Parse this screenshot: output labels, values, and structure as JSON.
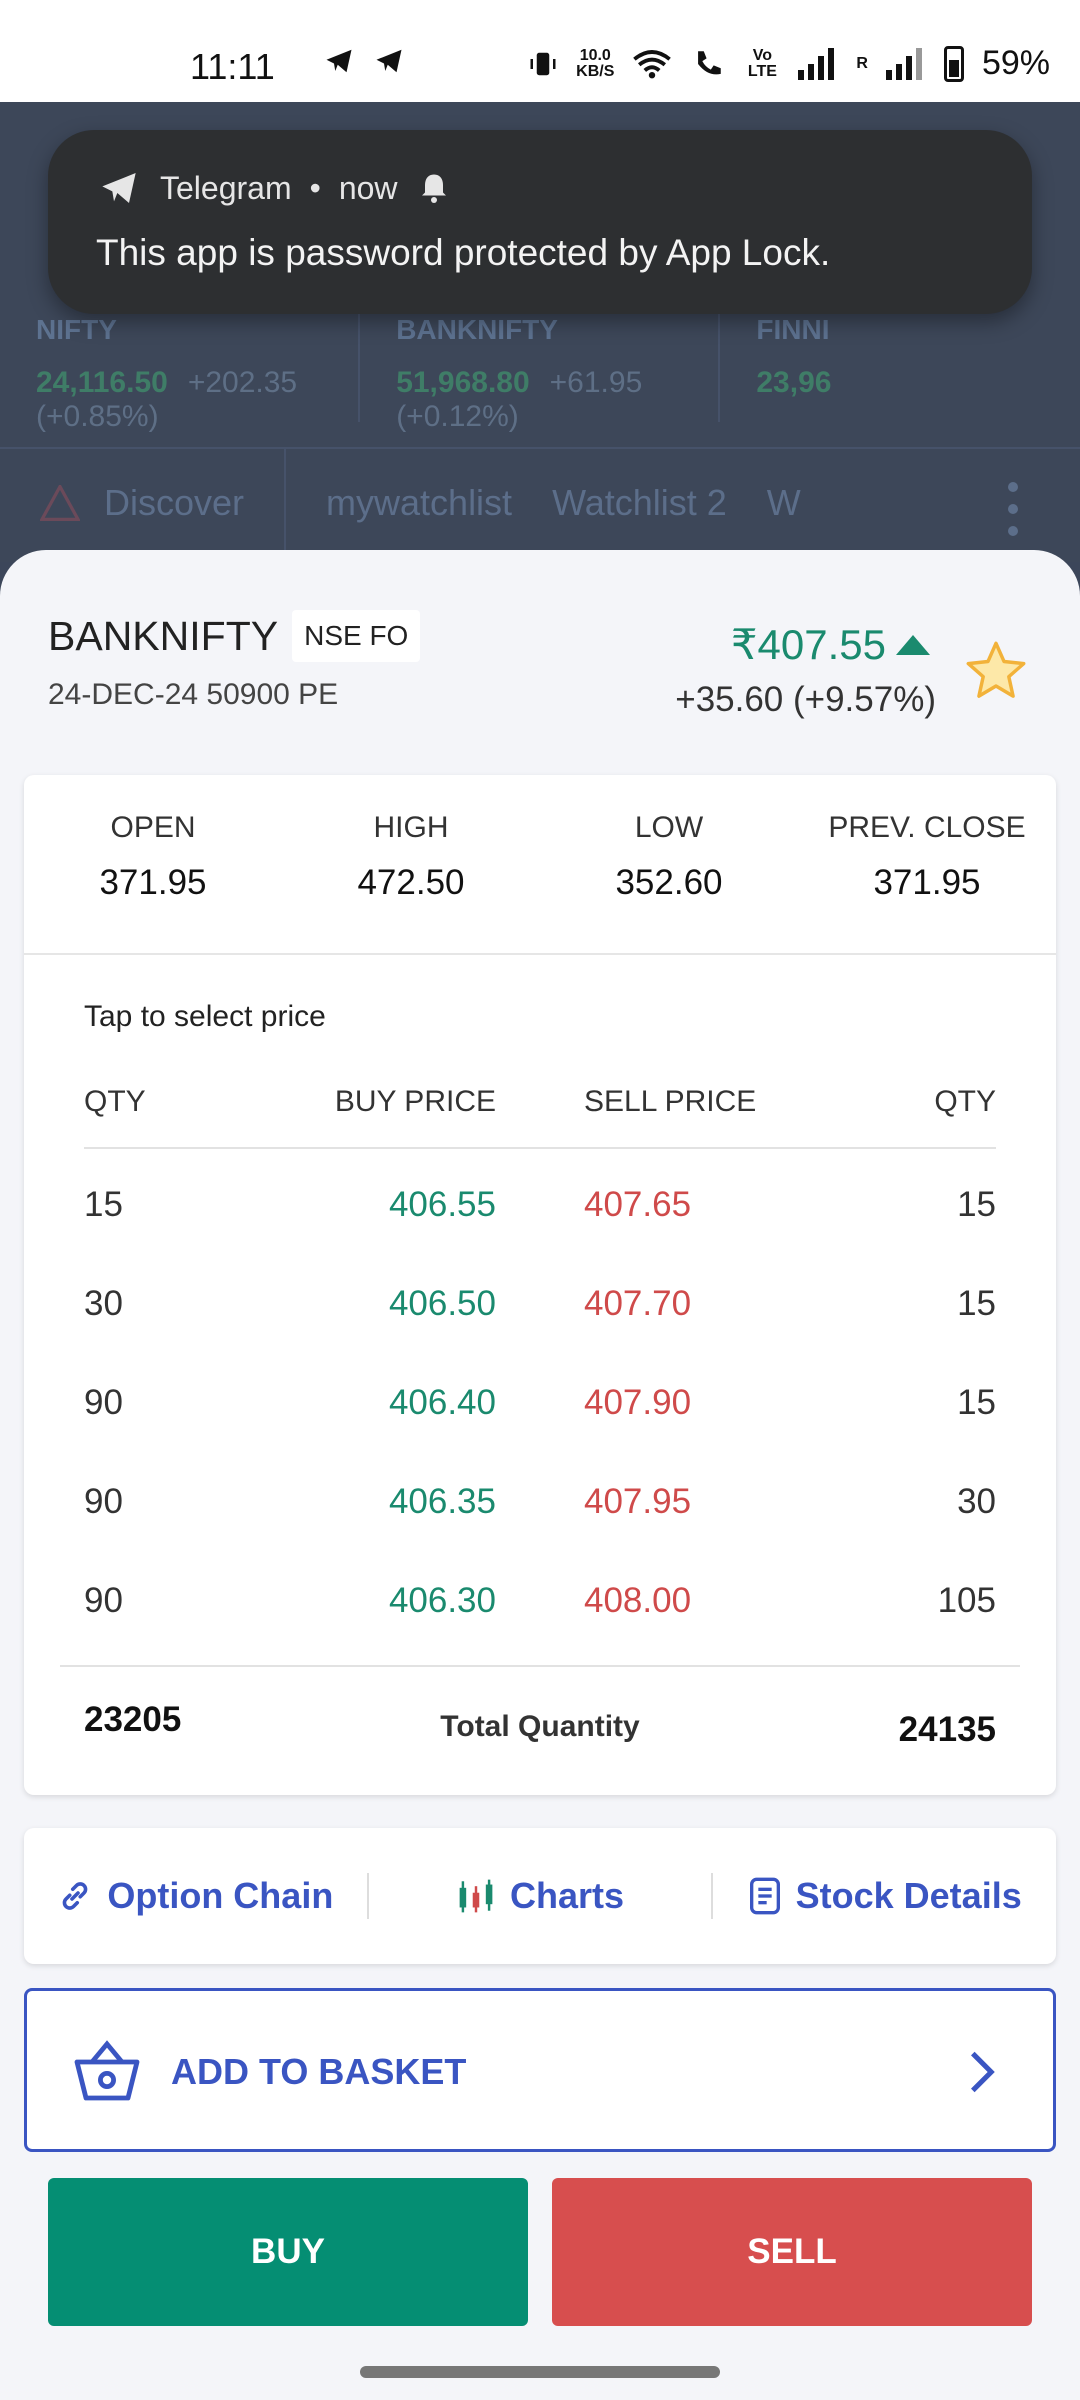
{
  "status_bar": {
    "time": "11:11",
    "net_speed_value": "10.0",
    "net_speed_unit": "KB/S",
    "volte": "Vo LTE",
    "roaming": "R",
    "battery": "59%"
  },
  "background_app": {
    "indices": [
      {
        "name": "NIFTY",
        "value": "24,116.50",
        "change": "+202.35 (+0.85%)"
      },
      {
        "name": "BANKNIFTY",
        "value": "51,968.80",
        "change": "+61.95 (+0.12%)"
      },
      {
        "name": "FINNI",
        "value": "23,96",
        "change": ""
      }
    ],
    "tabs": [
      "Discover",
      "mywatchlist",
      "Watchlist 2",
      "W"
    ]
  },
  "notification": {
    "app": "Telegram",
    "time": "now",
    "message": "This app is password protected by App Lock."
  },
  "instrument": {
    "symbol": "BANKNIFTY",
    "exchange": "NSE FO",
    "contract": "24-DEC-24 50900 PE",
    "ltp": "₹407.55",
    "change": "+35.60 (+9.57%)"
  },
  "ohlc": [
    {
      "label": "OPEN",
      "value": "371.95"
    },
    {
      "label": "HIGH",
      "value": "472.50"
    },
    {
      "label": "LOW",
      "value": "352.60"
    },
    {
      "label": "PREV. CLOSE",
      "value": "371.95"
    }
  ],
  "depth": {
    "hint": "Tap to select price",
    "headers": [
      "QTY",
      "BUY PRICE",
      "SELL PRICE",
      "QTY"
    ],
    "rows": [
      [
        "15",
        "406.55",
        "407.65",
        "15"
      ],
      [
        "30",
        "406.50",
        "407.70",
        "15"
      ],
      [
        "90",
        "406.40",
        "407.90",
        "15"
      ],
      [
        "90",
        "406.35",
        "407.95",
        "30"
      ],
      [
        "90",
        "406.30",
        "408.00",
        "105"
      ]
    ],
    "total_buy": "23205",
    "total_label": "Total Quantity",
    "total_sell": "24135"
  },
  "links": {
    "option_chain": "Option Chain",
    "charts": "Charts",
    "stock_details": "Stock Details"
  },
  "basket_label": "ADD TO BASKET",
  "buy_label": "BUY",
  "sell_label": "SELL",
  "colors": {
    "accent": "#3a55c2",
    "buy": "#058e73",
    "sell": "#d74e4e",
    "up": "#1a8a6e"
  }
}
